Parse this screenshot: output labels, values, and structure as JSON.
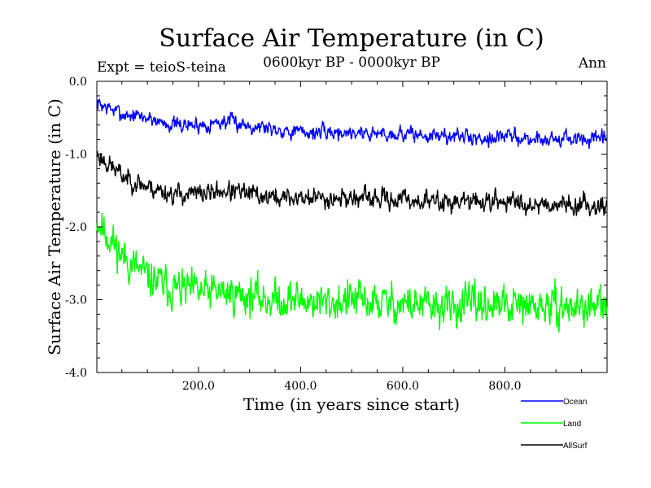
{
  "chart_data": {
    "type": "line",
    "title": "Surface Air Temperature (in C)",
    "subtitle": "0600kyr BP - 0000kyr BP",
    "experiment": "Expt = teioS-teina",
    "season": "Ann",
    "xlabel": "Time (in years since start)",
    "ylabel": "Surface Air Temperature (in C)",
    "xlim": [
      1,
      1000
    ],
    "ylim": [
      -4.0,
      0.0
    ],
    "x_ticks": [
      200,
      400,
      600,
      800
    ],
    "x_tick_labels": [
      "200.0",
      "400.0",
      "600.0",
      "800.0"
    ],
    "y_ticks": [
      0,
      -1,
      -2,
      -3,
      -4
    ],
    "y_tick_labels": [
      "0.0",
      "-1.0",
      "-2.0",
      "-3.0",
      "-4.0"
    ],
    "x_step": 50,
    "series": [
      {
        "name": "Ocean",
        "color": "#0000ff",
        "values": [
          -0.3,
          -0.45,
          -0.5,
          -0.6,
          -0.6,
          -0.55,
          -0.6,
          -0.65,
          -0.7,
          -0.7,
          -0.7,
          -0.72,
          -0.72,
          -0.75,
          -0.75,
          -0.78,
          -0.75,
          -0.8,
          -0.78,
          -0.8,
          -0.8
        ],
        "noise": 0.11,
        "seed": 7
      },
      {
        "name": "Land",
        "color": "#00ff00",
        "values": [
          -1.9,
          -2.4,
          -2.7,
          -2.85,
          -2.9,
          -2.9,
          -2.95,
          -3.0,
          -3.0,
          -3.05,
          -3.0,
          -3.05,
          -3.05,
          -3.1,
          -3.1,
          -3.05,
          -3.1,
          -3.1,
          -3.1,
          -3.1,
          -3.1
        ],
        "noise": 0.27,
        "seed": 11
      },
      {
        "name": "AllSurf",
        "color": "#000000",
        "values": [
          -1.0,
          -1.3,
          -1.45,
          -1.55,
          -1.55,
          -1.5,
          -1.55,
          -1.6,
          -1.6,
          -1.6,
          -1.6,
          -1.62,
          -1.62,
          -1.65,
          -1.65,
          -1.65,
          -1.65,
          -1.68,
          -1.68,
          -1.7,
          -1.7
        ],
        "noise": 0.14,
        "seed": 23
      }
    ]
  }
}
